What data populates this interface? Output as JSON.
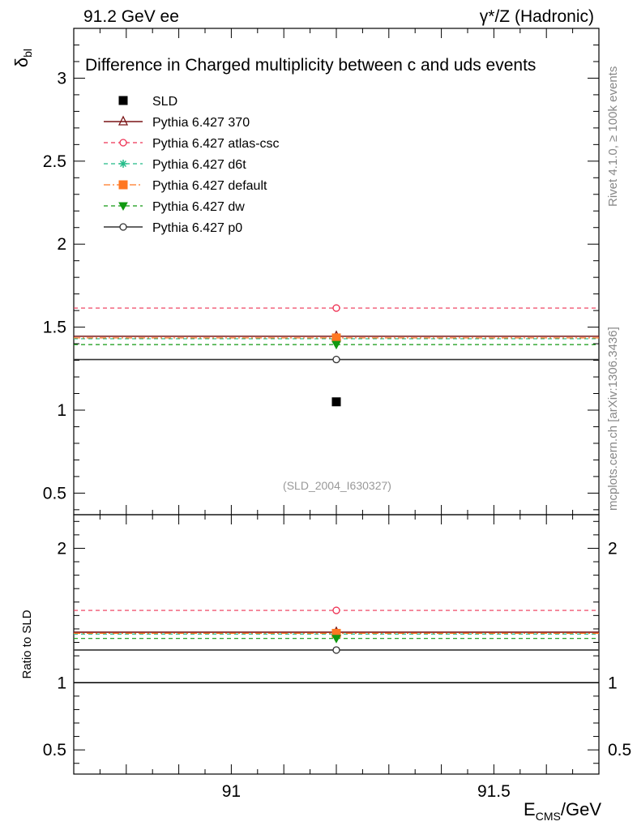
{
  "header": {
    "left": "91.2 GeV ee",
    "right": "γ*/Z (Hadronic)"
  },
  "side_labels": {
    "rivet": "Rivet 4.1.0, ≥ 100k events",
    "mcplots": "mcplots.cern.ch [arXiv:1306.3436]"
  },
  "chart_data": {
    "type": "scatter",
    "title": "Difference in Charged multiplicity between c and uds events",
    "analysis_tag": "(SLD_2004_I630327)",
    "ylabel_main": "δ",
    "ylabel_main_sub": "bl",
    "ylabel_ratio": "Ratio to SLD",
    "xlabel": "E",
    "xlabel_sub": "CMS",
    "xlabel_unit": "/GeV",
    "xlim": [
      90.7,
      91.7
    ],
    "ylim_main": [
      0.37,
      3.3
    ],
    "ylim_ratio": [
      0.32,
      2.25
    ],
    "x_ticks": [
      {
        "v": 91,
        "label": "91"
      },
      {
        "v": 91.5,
        "label": "91.5"
      }
    ],
    "y_ticks_main": [
      {
        "v": 0.5,
        "label": "0.5"
      },
      {
        "v": 1,
        "label": "1"
      },
      {
        "v": 1.5,
        "label": "1.5"
      },
      {
        "v": 2,
        "label": "2"
      },
      {
        "v": 2.5,
        "label": "2.5"
      },
      {
        "v": 3,
        "label": "3"
      }
    ],
    "y_ticks_ratio": [
      {
        "v": 0.5,
        "label": "0.5"
      },
      {
        "v": 1,
        "label": "1"
      },
      {
        "v": 2,
        "label": "2"
      }
    ],
    "data": {
      "name": "SLD",
      "x": 91.2,
      "y": 1.05,
      "color": "#000000",
      "marker": "square"
    },
    "series": [
      {
        "name": "Pythia 6.427 370",
        "y": 1.445,
        "ratio": 1.376,
        "color": "#7a1416",
        "dash": "",
        "marker": "triangle"
      },
      {
        "name": "Pythia 6.427 atlas-csc",
        "y": 1.615,
        "ratio": 1.538,
        "color": "#ee3355",
        "dash": "5,4",
        "marker": "circle-open"
      },
      {
        "name": "Pythia 6.427 d6t",
        "y": 1.43,
        "ratio": 1.362,
        "color": "#22bb88",
        "dash": "5,4",
        "marker": "star"
      },
      {
        "name": "Pythia 6.427 default",
        "y": 1.435,
        "ratio": 1.367,
        "color": "#ff7722",
        "dash": "8,3,2,3",
        "marker": "square"
      },
      {
        "name": "Pythia 6.427 dw",
        "y": 1.395,
        "ratio": 1.329,
        "color": "#119911",
        "dash": "5,4",
        "marker": "triangle-down"
      },
      {
        "name": "Pythia 6.427 p0",
        "y": 1.305,
        "ratio": 1.243,
        "color": "#333333",
        "dash": "",
        "marker": "circle-open"
      }
    ]
  }
}
